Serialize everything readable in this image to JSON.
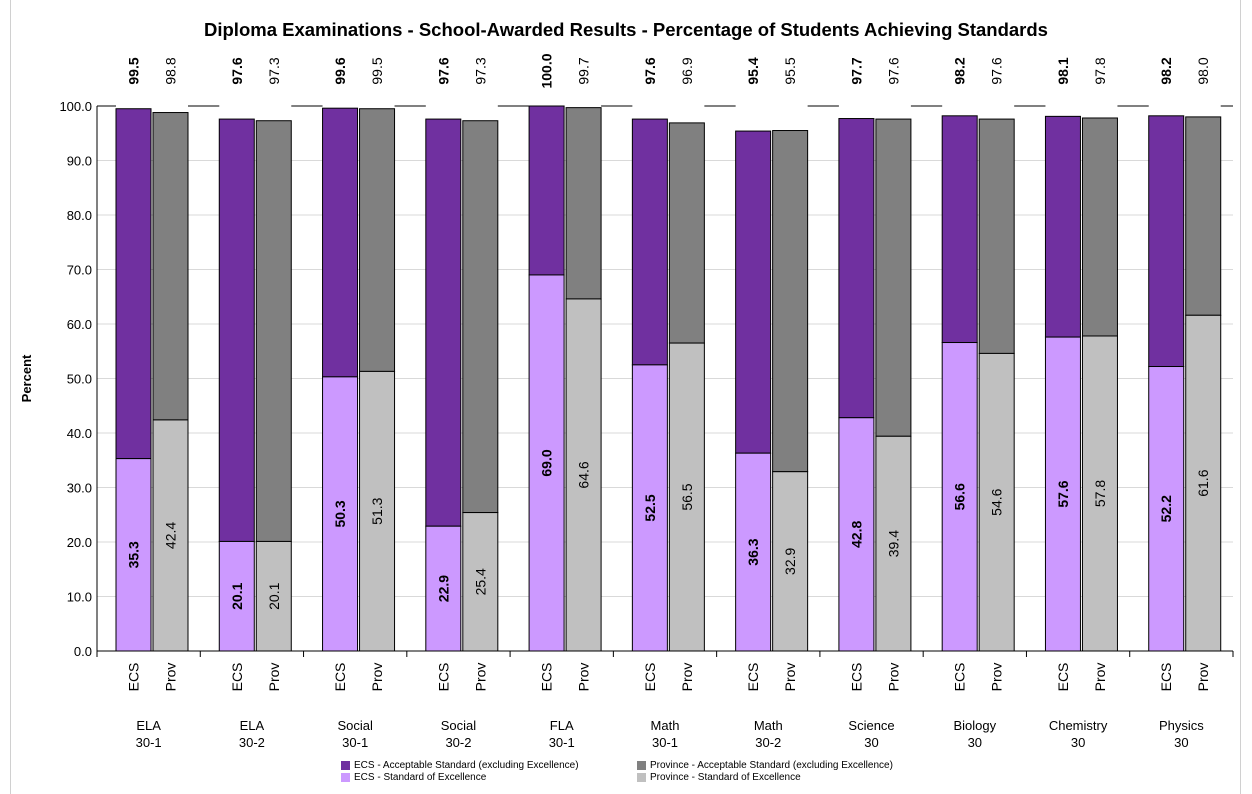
{
  "colors": {
    "ecs_acceptable": "#7030a0",
    "ecs_excellence": "#cc99ff",
    "prov_acceptable": "#808080",
    "prov_excellence": "#c0c0c0"
  },
  "chart_data": {
    "type": "bar",
    "stacked": true,
    "title": "Diploma Examinations - School-Awarded Results - Percentage of Students Achieving Standards",
    "ylabel": "Percent",
    "ylim": [
      0,
      100
    ],
    "yticks": [
      "0.0",
      "10.0",
      "20.0",
      "30.0",
      "40.0",
      "50.0",
      "60.0",
      "70.0",
      "80.0",
      "90.0",
      "100.0"
    ],
    "grid": true,
    "legend_position": "bottom",
    "courses": [
      {
        "line1": "ELA",
        "line2": "30-1",
        "ecs_excellence": 35.3,
        "ecs_total": 99.5,
        "prov_excellence": 42.4,
        "prov_total": 98.8,
        "ecs_excellence_label": "35.3",
        "ecs_total_label": "99.5",
        "prov_excellence_label": "42.4",
        "prov_total_label": "98.8"
      },
      {
        "line1": "ELA",
        "line2": "30-2",
        "ecs_excellence": 20.1,
        "ecs_total": 97.6,
        "prov_excellence": 20.1,
        "prov_total": 97.3,
        "ecs_excellence_label": "20.1",
        "ecs_total_label": "97.6",
        "prov_excellence_label": "20.1",
        "prov_total_label": "97.3"
      },
      {
        "line1": "Social",
        "line2": "30-1",
        "ecs_excellence": 50.3,
        "ecs_total": 99.6,
        "prov_excellence": 51.3,
        "prov_total": 99.5,
        "ecs_excellence_label": "50.3",
        "ecs_total_label": "99.6",
        "prov_excellence_label": "51.3",
        "prov_total_label": "99.5"
      },
      {
        "line1": "Social",
        "line2": "30-2",
        "ecs_excellence": 22.9,
        "ecs_total": 97.6,
        "prov_excellence": 25.4,
        "prov_total": 97.3,
        "ecs_excellence_label": "22.9",
        "ecs_total_label": "97.6",
        "prov_excellence_label": "25.4",
        "prov_total_label": "97.3"
      },
      {
        "line1": "FLA",
        "line2": "30-1",
        "ecs_excellence": 69.0,
        "ecs_total": 100.0,
        "prov_excellence": 64.6,
        "prov_total": 99.7,
        "ecs_excellence_label": "69.0",
        "ecs_total_label": "100.0",
        "prov_excellence_label": "64.6",
        "prov_total_label": "99.7"
      },
      {
        "line1": "Math",
        "line2": "30-1",
        "ecs_excellence": 52.5,
        "ecs_total": 97.6,
        "prov_excellence": 56.5,
        "prov_total": 96.9,
        "ecs_excellence_label": "52.5",
        "ecs_total_label": "97.6",
        "prov_excellence_label": "56.5",
        "prov_total_label": "96.9"
      },
      {
        "line1": "Math",
        "line2": "30-2",
        "ecs_excellence": 36.3,
        "ecs_total": 95.4,
        "prov_excellence": 32.9,
        "prov_total": 95.5,
        "ecs_excellence_label": "36.3",
        "ecs_total_label": "95.4",
        "prov_excellence_label": "32.9",
        "prov_total_label": "95.5"
      },
      {
        "line1": "Science",
        "line2": "30",
        "ecs_excellence": 42.8,
        "ecs_total": 97.7,
        "prov_excellence": 39.4,
        "prov_total": 97.6,
        "ecs_excellence_label": "42.8",
        "ecs_total_label": "97.7",
        "prov_excellence_label": "39.4",
        "prov_total_label": "97.6"
      },
      {
        "line1": "Biology",
        "line2": "30",
        "ecs_excellence": 56.6,
        "ecs_total": 98.2,
        "prov_excellence": 54.6,
        "prov_total": 97.6,
        "ecs_excellence_label": "56.6",
        "ecs_total_label": "98.2",
        "prov_excellence_label": "54.6",
        "prov_total_label": "97.6"
      },
      {
        "line1": "Chemistry",
        "line2": "30",
        "ecs_excellence": 57.6,
        "ecs_total": 98.1,
        "prov_excellence": 57.8,
        "prov_total": 97.8,
        "ecs_excellence_label": "57.6",
        "ecs_total_label": "98.1",
        "prov_excellence_label": "57.8",
        "prov_total_label": "97.8"
      },
      {
        "line1": "Physics",
        "line2": "30",
        "ecs_excellence": 52.2,
        "ecs_total": 98.2,
        "prov_excellence": 61.6,
        "prov_total": 98.0,
        "ecs_excellence_label": "52.2",
        "ecs_total_label": "98.2",
        "prov_excellence_label": "61.6",
        "prov_total_label": "98.0"
      }
    ],
    "bar_labels": [
      "ECS",
      "Prov"
    ],
    "legend": [
      {
        "key": "ecs_acceptable",
        "label": "ECS - Acceptable Standard (excluding Excellence)"
      },
      {
        "key": "ecs_excellence",
        "label": "ECS - Standard of Excellence"
      },
      {
        "key": "prov_acceptable",
        "label": "Province - Acceptable Standard (excluding Excellence)"
      },
      {
        "key": "prov_excellence",
        "label": "Province - Standard of Excellence"
      }
    ]
  }
}
